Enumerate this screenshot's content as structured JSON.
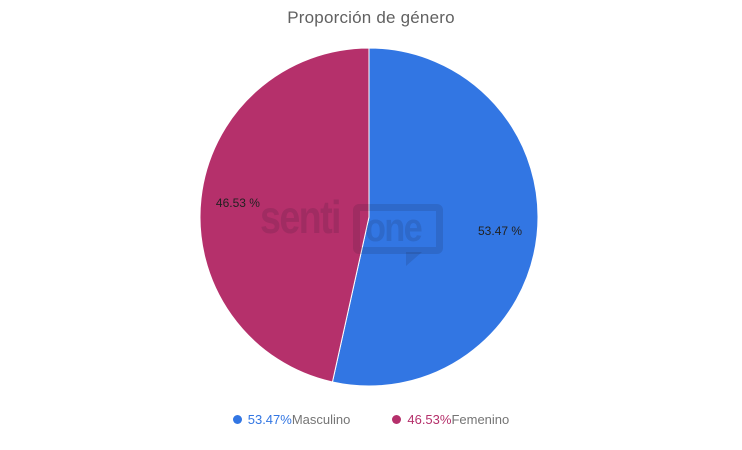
{
  "page": {
    "background": "#ffffff"
  },
  "chart_data": {
    "type": "pie",
    "title": "Proporción de género",
    "categories": [
      "Masculino",
      "Femenino"
    ],
    "values": [
      53.47,
      46.53
    ],
    "colors": [
      "#3276e3",
      "#b5306b"
    ],
    "slice_labels": [
      "53.47 %",
      "46.53 %"
    ],
    "slice_label_color": "#222222",
    "title_color": "#616161",
    "legend_label_color": "#757575",
    "start_angle_deg": -90,
    "direction": "clockwise",
    "legend_position": "bottom",
    "legend": [
      {
        "percent": "53.47%",
        "label": "Masculino"
      },
      {
        "percent": "46.53%",
        "label": "Femenino"
      }
    ]
  },
  "watermark": {
    "left": "senti",
    "right": "one"
  }
}
